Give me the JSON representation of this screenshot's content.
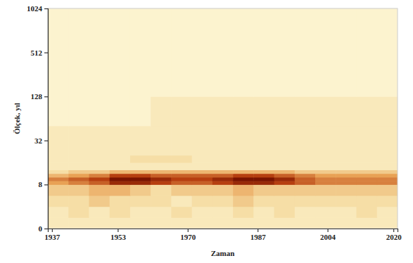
{
  "chart_data": {
    "type": "heatmap",
    "x_label": "Zaman",
    "y_label": "Ölçek, yıl",
    "xlim": [
      1936,
      2021
    ],
    "xticks": [
      1937,
      1953,
      1970,
      1987,
      2004,
      2020
    ],
    "ylim": [
      0,
      1024
    ],
    "yticks": [
      0,
      8,
      32,
      128,
      512,
      1024
    ],
    "grid": false,
    "x_edges": [
      1936,
      1941,
      1946,
      1951,
      1956,
      1961,
      1966,
      1971,
      1976,
      1981,
      1986,
      1991,
      1996,
      2001,
      2006,
      2011,
      2016,
      2021
    ],
    "y_edges": [
      0,
      2,
      4,
      6,
      8,
      10,
      12,
      14,
      16,
      20,
      24,
      32,
      64,
      128,
      256,
      512,
      1024
    ],
    "values": [
      [
        1,
        1,
        1,
        1,
        1,
        1,
        1,
        1,
        1,
        1,
        1,
        1,
        1,
        1,
        1,
        1,
        1
      ],
      [
        1,
        2,
        1,
        2,
        1,
        1,
        2,
        1,
        1,
        2,
        1,
        2,
        1,
        1,
        1,
        2,
        1
      ],
      [
        2,
        2,
        3,
        2,
        2,
        2,
        1,
        2,
        2,
        3,
        2,
        2,
        2,
        2,
        2,
        2,
        2
      ],
      [
        3,
        3,
        4,
        4,
        3,
        2,
        3,
        3,
        3,
        4,
        3,
        3,
        3,
        3,
        3,
        3,
        3
      ],
      [
        5,
        6,
        7,
        9,
        9,
        8,
        7,
        7,
        8,
        9,
        9,
        8,
        7,
        6,
        6,
        6,
        6
      ],
      [
        6,
        7,
        8,
        10,
        10,
        9,
        8,
        8,
        9,
        10,
        10,
        9,
        7,
        6,
        6,
        6,
        6
      ],
      [
        4,
        5,
        6,
        8,
        8,
        7,
        7,
        7,
        7,
        8,
        8,
        7,
        6,
        5,
        5,
        5,
        5
      ],
      [
        2,
        3,
        3,
        4,
        4,
        4,
        4,
        4,
        4,
        4,
        4,
        4,
        3,
        3,
        3,
        3,
        3
      ],
      [
        1,
        1,
        1,
        1,
        1,
        1,
        1,
        1,
        1,
        1,
        1,
        1,
        1,
        1,
        1,
        1,
        1
      ],
      [
        1,
        1,
        1,
        1,
        2,
        2,
        2,
        1,
        1,
        1,
        1,
        1,
        1,
        1,
        1,
        1,
        1
      ],
      [
        1,
        1,
        1,
        1,
        1,
        1,
        1,
        1,
        1,
        1,
        1,
        1,
        1,
        1,
        1,
        1,
        1
      ],
      [
        1,
        1,
        1,
        1,
        1,
        1,
        1,
        1,
        1,
        1,
        1,
        1,
        1,
        1,
        1,
        1,
        1
      ],
      [
        0,
        0,
        0,
        0,
        0,
        1,
        1,
        1,
        1,
        1,
        1,
        1,
        1,
        1,
        1,
        1,
        1
      ],
      [
        0,
        0,
        0,
        0,
        0,
        0,
        0,
        0,
        0,
        0,
        0,
        0,
        0,
        0,
        0,
        0,
        0
      ],
      [
        0,
        0,
        0,
        0,
        0,
        0,
        0,
        0,
        0,
        0,
        0,
        0,
        0,
        0,
        0,
        0,
        0
      ],
      [
        0,
        0,
        0,
        0,
        0,
        0,
        0,
        0,
        0,
        0,
        0,
        0,
        0,
        0,
        0,
        0,
        0
      ]
    ]
  }
}
